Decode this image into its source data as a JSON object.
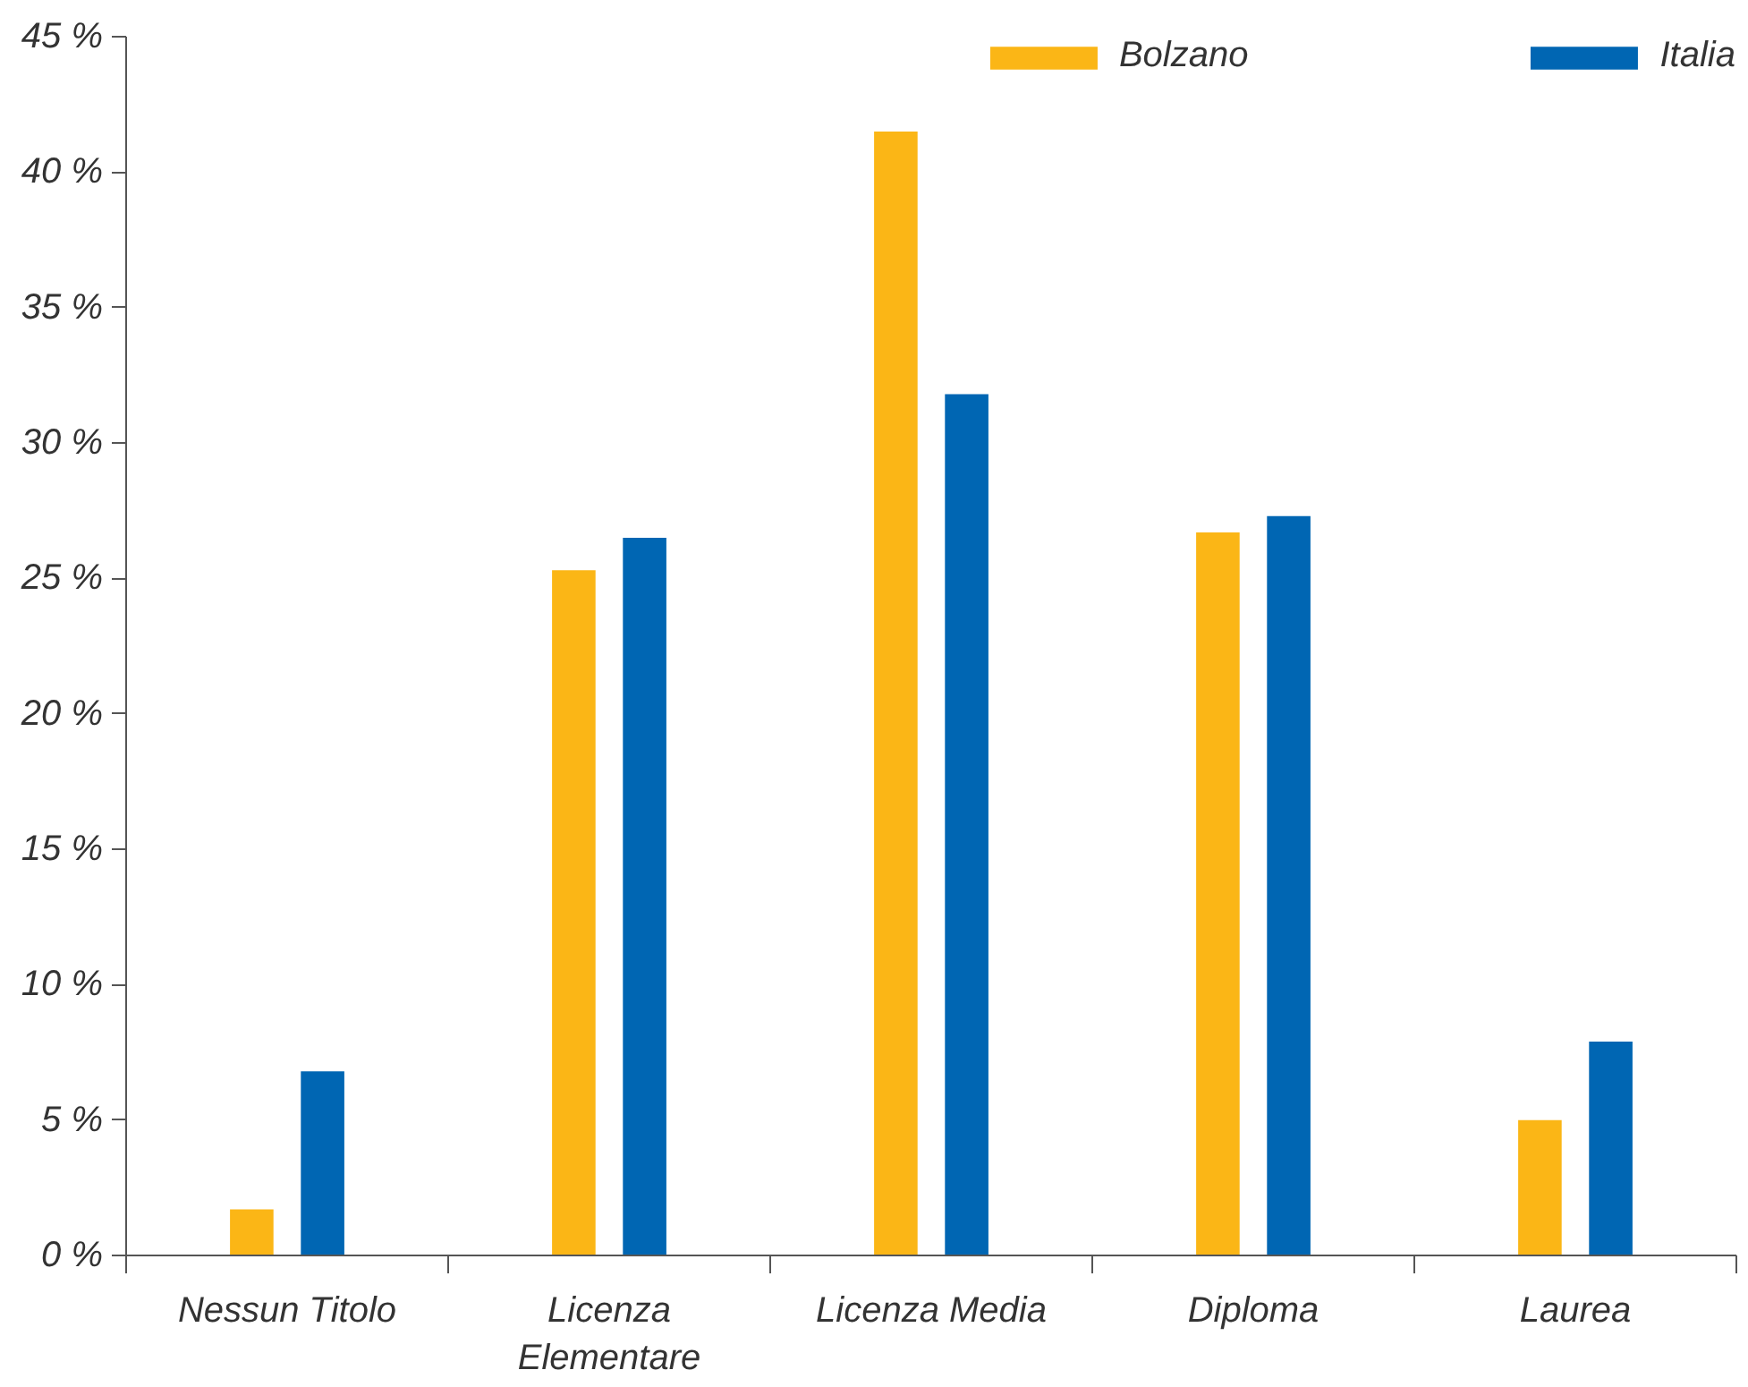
{
  "chart_data": {
    "type": "bar",
    "categories": [
      "Nessun Titolo",
      "Licenza Elementare",
      "Licenza Media",
      "Diploma",
      "Laurea"
    ],
    "series": [
      {
        "name": "Bolzano",
        "color": "#fbb616",
        "values": [
          1.7,
          25.3,
          41.5,
          26.7,
          5.0
        ]
      },
      {
        "name": "Italia",
        "color": "#0066b3",
        "values": [
          6.8,
          26.5,
          31.8,
          27.3,
          7.9
        ]
      }
    ],
    "ylim": [
      0,
      45
    ],
    "yticks": [
      {
        "value": 0,
        "label": "0 %"
      },
      {
        "value": 5,
        "label": "5 %"
      },
      {
        "value": 10,
        "label": "10 %"
      },
      {
        "value": 15,
        "label": "15 %"
      },
      {
        "value": 20,
        "label": "20 %"
      },
      {
        "value": 25,
        "label": "25 %"
      },
      {
        "value": 30,
        "label": "30 %"
      },
      {
        "value": 35,
        "label": "35 %"
      },
      {
        "value": 40,
        "label": "40 %"
      },
      {
        "value": 45,
        "label": "45 %"
      }
    ],
    "grid": false,
    "legend": "top"
  }
}
